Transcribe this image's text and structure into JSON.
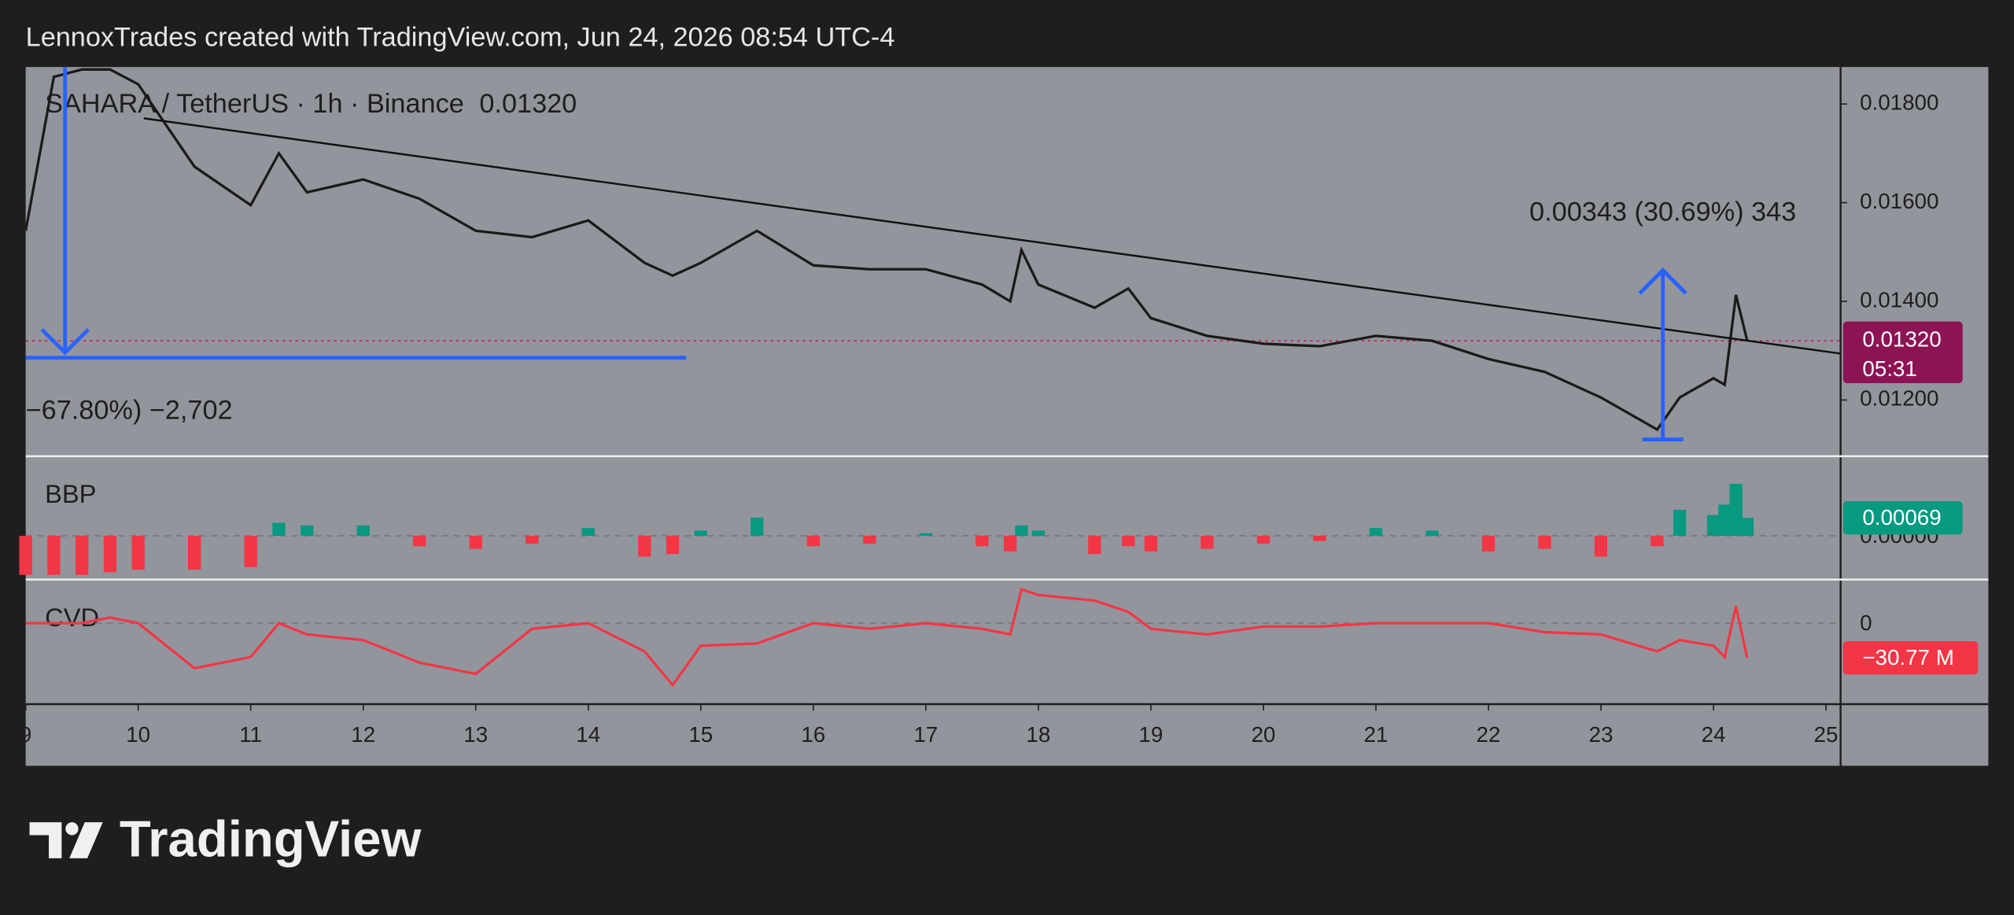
{
  "header": "LennoxTrades created with TradingView.com, Jun 24, 2026 08:54 UTC-4",
  "footer_logo": "TradingView",
  "chart_data": {
    "type": "line",
    "title": "SAHARA / TetherUS · 1h · Binance",
    "last_price": {
      "value": 0.0132,
      "label": "0.01320"
    },
    "countdown": "05:31",
    "color": "#1a1a1a",
    "x": [
      9,
      9.25,
      9.5,
      9.75,
      10,
      10.5,
      11,
      11.25,
      11.5,
      12,
      12.5,
      13,
      13.5,
      14,
      14.5,
      14.75,
      15,
      15.5,
      16,
      16.5,
      17,
      17.5,
      17.75,
      17.85,
      18,
      18.5,
      18.8,
      19,
      19.5,
      20,
      20.5,
      21,
      21.5,
      22,
      22.5,
      23,
      23.5,
      23.7,
      24,
      24.1,
      24.2,
      24.3
    ],
    "values": [
      0.01543,
      0.01855,
      0.0187,
      0.0187,
      0.0184,
      0.01673,
      0.01595,
      0.017,
      0.01621,
      0.01647,
      0.01608,
      0.01543,
      0.0153,
      0.01564,
      0.01478,
      0.01452,
      0.01478,
      0.01543,
      0.01473,
      0.01465,
      0.01465,
      0.01434,
      0.014,
      0.01504,
      0.01434,
      0.01387,
      0.01426,
      0.01366,
      0.0133,
      0.01314,
      0.01309,
      0.0133,
      0.0132,
      0.01283,
      0.01257,
      0.01205,
      0.0114,
      0.01205,
      0.01244,
      0.01231,
      0.01413,
      0.0132
    ],
    "xlim": [
      9,
      25.13
    ],
    "xticks": [
      9,
      10,
      11,
      12,
      13,
      14,
      15,
      16,
      17,
      18,
      19,
      20,
      21,
      22,
      23,
      24,
      25
    ],
    "ylim": [
      0.01086,
      0.01875
    ],
    "yticks": [
      {
        "value": 0.012,
        "label": "0.01200"
      },
      {
        "value": 0.014,
        "label": "0.01400"
      },
      {
        "value": 0.016,
        "label": "0.01600"
      },
      {
        "value": 0.018,
        "label": "0.01800"
      }
    ],
    "trendline": {
      "x": [
        10.05,
        25.13
      ],
      "values": [
        0.01771,
        0.01294
      ]
    },
    "measurements": [
      {
        "label": "−67.80%) −2,702",
        "x": 9.35,
        "from": 0.01875,
        "to": 0.01296,
        "x_end": 14.87
      },
      {
        "label": "0.00343 (30.69%) 343",
        "x": 23.55,
        "from": 0.0112,
        "to": 0.01463
      }
    ],
    "panes": [
      {
        "type": "bar",
        "title": "BBP",
        "up_color": "#089981",
        "down_color": "#f23645",
        "ylim": [
          -0.00168,
          0.00306
        ],
        "yticks": [
          {
            "value": 0,
            "label": "0.00000"
          }
        ],
        "last": {
          "value": 0.00069,
          "label": "0.00069"
        },
        "values": [
          -0.0015,
          -0.0015,
          -0.0015,
          -0.0014,
          -0.0013,
          -0.0013,
          -0.0012,
          0.0005,
          0.0004,
          0.0004,
          -0.0004,
          -0.0005,
          -0.0003,
          0.0003,
          -0.0008,
          -0.0007,
          0.0002,
          0.0007,
          -0.0004,
          -0.0003,
          0.0001,
          -0.0004,
          -0.0006,
          0.0004,
          0.0002,
          -0.0007,
          -0.0004,
          -0.0006,
          -0.0005,
          -0.0003,
          -0.0002,
          0.0003,
          0.0002,
          -0.0006,
          -0.0005,
          -0.0008,
          -0.0004,
          0.001,
          0.0008,
          0.0012,
          0.002,
          0.00069
        ]
      },
      {
        "type": "line",
        "title": "CVD",
        "color": "#f23645",
        "ylim": [
          -71.8,
          38.7
        ],
        "yticks": [
          0
        ],
        "last": {
          "value": -30.77,
          "label": "−30.77 M"
        },
        "values": [
          0,
          0,
          0,
          5,
          0,
          -40,
          -30,
          0,
          -10,
          -15,
          -35,
          -45,
          -5,
          0,
          -25,
          -55,
          -20,
          -18,
          0,
          -5,
          0,
          -5,
          -10,
          30,
          25,
          20,
          10,
          -5,
          -10,
          -3,
          -3,
          0,
          0,
          0,
          -8,
          -10,
          -25,
          -15,
          -20,
          -30,
          15,
          -30.77
        ]
      }
    ]
  }
}
